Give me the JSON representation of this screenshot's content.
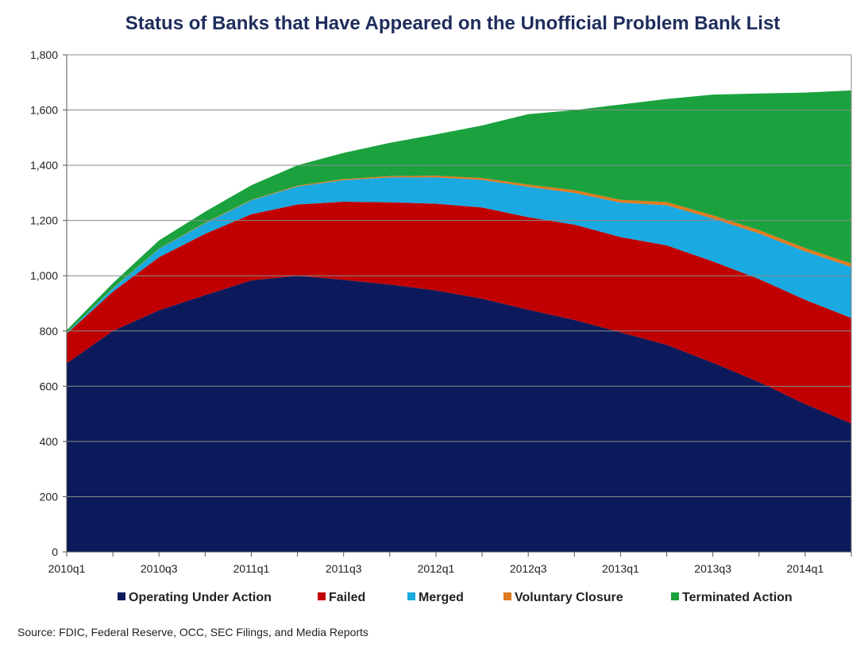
{
  "chart_data": {
    "type": "area",
    "stacked": true,
    "title": "Status of Banks that Have Appeared on the Unofficial  Problem Bank List",
    "xlabel": "",
    "ylabel": "",
    "ylim": [
      0,
      1800
    ],
    "yticks": [
      0,
      200,
      400,
      600,
      800,
      1000,
      1200,
      1400,
      1600,
      1800
    ],
    "ytick_labels": [
      "0",
      "200",
      "400",
      "600",
      "800",
      "1,000",
      "1,200",
      "1,400",
      "1,600",
      "1,800"
    ],
    "grid": true,
    "legend_position": "bottom",
    "x": [
      "2010q1",
      "2010q2",
      "2010q3",
      "2010q4",
      "2011q1",
      "2011q2",
      "2011q3",
      "2011q4",
      "2012q1",
      "2012q2",
      "2012q3",
      "2012q4",
      "2013q1",
      "2013q2",
      "2013q3",
      "2013q4",
      "2014q1",
      "2014q2"
    ],
    "x_tick_labels": [
      "2010q1",
      "",
      "2010q3",
      "",
      "2011q1",
      "",
      "2011q3",
      "",
      "2012q1",
      "",
      "2012q3",
      "",
      "2013q1",
      "",
      "2013q3",
      "",
      "2014q1",
      ""
    ],
    "series": [
      {
        "name": "Operating Under Action",
        "color": "#0c1a5b",
        "values": [
          683,
          800,
          875,
          930,
          983,
          1000,
          985,
          968,
          947,
          917,
          877,
          840,
          795,
          750,
          685,
          615,
          535,
          465
        ]
      },
      {
        "name": "Failed",
        "color": "#c00000",
        "values": [
          107,
          142,
          192,
          222,
          240,
          258,
          283,
          298,
          314,
          330,
          335,
          345,
          345,
          360,
          367,
          373,
          378,
          382
        ]
      },
      {
        "name": "Merged",
        "color": "#1aa9e0",
        "values": [
          3,
          12,
          30,
          38,
          50,
          65,
          78,
          90,
          95,
          100,
          110,
          115,
          125,
          145,
          155,
          165,
          175,
          185
        ]
      },
      {
        "name": "Voluntary Closure",
        "color": "#e07a1f",
        "values": [
          0,
          1,
          1,
          2,
          2,
          3,
          4,
          5,
          6,
          7,
          8,
          10,
          10,
          12,
          12,
          12,
          12,
          12
        ]
      },
      {
        "name": "Terminated Action",
        "color": "#1ba23f",
        "values": [
          10,
          18,
          30,
          40,
          53,
          74,
          95,
          120,
          150,
          190,
          255,
          290,
          345,
          373,
          437,
          495,
          563,
          627
        ]
      }
    ],
    "source": "Source: FDIC, Federal Reserve, OCC, SEC Filings, and Media Reports"
  }
}
